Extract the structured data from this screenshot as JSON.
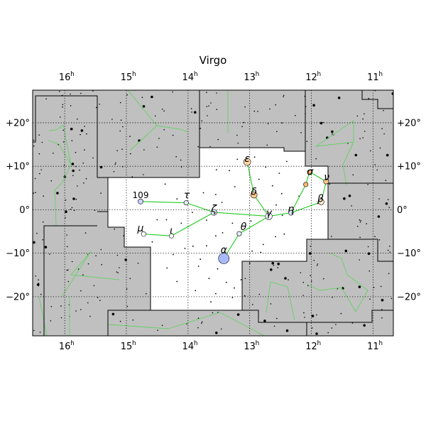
{
  "title": "Virgo",
  "ra_labels": [
    {
      "h": "16",
      "ra": 16
    },
    {
      "h": "15",
      "ra": 15
    },
    {
      "h": "14",
      "ra": 14
    },
    {
      "h": "13",
      "ra": 13
    },
    {
      "h": "12",
      "ra": 12
    },
    {
      "h": "11",
      "ra": 11
    }
  ],
  "dec_labels": [
    {
      "text": "+20°",
      "dec": 20
    },
    {
      "text": "+10°",
      "dec": 10
    },
    {
      "text": "0°",
      "dec": 0
    },
    {
      "text": "−10°",
      "dec": -10
    },
    {
      "text": "−20°",
      "dec": -20
    }
  ],
  "star_labels": [
    {
      "text": "ε",
      "ra": 13.04,
      "dec": 11.0
    },
    {
      "text": "δ",
      "ra": 12.93,
      "dec": 3.4
    },
    {
      "text": "γ",
      "ra": 12.69,
      "dec": -1.5
    },
    {
      "text": "ζ",
      "ra": 13.58,
      "dec": -0.6
    },
    {
      "text": "η",
      "ra": 12.33,
      "dec": -0.6
    },
    {
      "text": "β",
      "ra": 11.85,
      "dec": 1.8
    },
    {
      "text": "σ",
      "ra": 12.02,
      "dec": 8.0
    },
    {
      "text": "ν",
      "ra": 11.75,
      "dec": 6.8
    },
    {
      "text": "τ",
      "ra": 14.02,
      "dec": 2.6
    },
    {
      "text": "109",
      "ra": 14.77,
      "dec": 2.7
    },
    {
      "text": "μ",
      "ra": 14.77,
      "dec": -5.0
    },
    {
      "text": "ι",
      "ra": 14.27,
      "dec": -5.6
    },
    {
      "text": "θ",
      "ra": 13.1,
      "dec": -4.7
    },
    {
      "text": "α",
      "ra": 13.42,
      "dec": -10.0
    }
  ],
  "colors": {
    "outside_fill": "#c0c0c0",
    "inside_fill": "#ffffff",
    "line_bright": "#22cc22",
    "line_faint": "#66d066",
    "boundary": "#000000"
  },
  "chart_data": {
    "type": "scatter",
    "title": "Virgo",
    "xlim_hours": [
      16.52,
      10.67
    ],
    "ylim_degrees": [
      -29.0,
      27.5
    ],
    "grid": true,
    "projection": "equirectangular, right ascension increasing to the left",
    "bright_stars": [
      {
        "ra": 13.42,
        "dec": -11.2,
        "size": 7.5,
        "color": "#a9b9ff"
      },
      {
        "ra": 13.04,
        "dec": 11.0,
        "size": 5.0,
        "color": "#ffd6a8"
      },
      {
        "ra": 12.93,
        "dec": 3.4,
        "size": 4.5,
        "color": "#ffc88f"
      },
      {
        "ra": 12.69,
        "dec": -1.5,
        "size": 4.8,
        "color": "#f2f4ff"
      },
      {
        "ra": 13.58,
        "dec": -0.6,
        "size": 4.2,
        "color": "#e4ecff"
      },
      {
        "ra": 12.33,
        "dec": -0.7,
        "size": 3.5,
        "color": "#d8e4ff"
      },
      {
        "ra": 11.84,
        "dec": 1.8,
        "size": 4.0,
        "color": "#ffe8d0"
      },
      {
        "ra": 12.09,
        "dec": 5.8,
        "size": 3.2,
        "color": "#ffb870"
      },
      {
        "ra": 11.76,
        "dec": 6.5,
        "size": 3.6,
        "color": "#ffc88f"
      },
      {
        "ra": 14.03,
        "dec": 1.6,
        "size": 3.2,
        "color": "#e4ecff"
      },
      {
        "ra": 14.77,
        "dec": 1.9,
        "size": 3.6,
        "color": "#c8d6ff"
      },
      {
        "ra": 14.72,
        "dec": -5.6,
        "size": 3.3,
        "color": "#ffffff"
      },
      {
        "ra": 14.27,
        "dec": -6.0,
        "size": 3.2,
        "color": "#ffffff"
      },
      {
        "ra": 13.17,
        "dec": -5.5,
        "size": 3.2,
        "color": "#e4ecff"
      },
      {
        "ra": 12.03,
        "dec": 8.7,
        "size": 3.0,
        "color": "#ffb870"
      }
    ],
    "faint_stars_inside": [
      {
        "ra": 13.54,
        "dec": 9.2
      },
      {
        "ra": 13.33,
        "dec": 9.0
      },
      {
        "ra": 13.2,
        "dec": 11.6
      },
      {
        "ra": 12.92,
        "dec": 12.1
      },
      {
        "ra": 12.74,
        "dec": 9.8
      },
      {
        "ra": 12.52,
        "dec": 8.4
      },
      {
        "ra": 12.4,
        "dec": 11.1
      },
      {
        "ra": 12.85,
        "dec": 7.0
      },
      {
        "ra": 12.63,
        "dec": 5.5
      },
      {
        "ra": 13.24,
        "dec": 5.3
      },
      {
        "ra": 13.55,
        "dec": 3.5
      },
      {
        "ra": 13.75,
        "dec": 3.9
      },
      {
        "ra": 14.18,
        "dec": 2.5
      },
      {
        "ra": 14.37,
        "dec": 5.9
      },
      {
        "ra": 12.95,
        "dec": 4.8
      },
      {
        "ra": 12.48,
        "dec": 3.7
      },
      {
        "ra": 12.2,
        "dec": 3.1
      },
      {
        "ra": 12.57,
        "dec": 1.1
      },
      {
        "ra": 12.47,
        "dec": -1.3
      },
      {
        "ra": 12.98,
        "dec": -2.6
      },
      {
        "ra": 13.28,
        "dec": -3.1
      },
      {
        "ra": 13.7,
        "dec": -2.4
      },
      {
        "ra": 13.93,
        "dec": -0.6
      },
      {
        "ra": 13.45,
        "dec": 1.7
      },
      {
        "ra": 14.5,
        "dec": -2.3
      },
      {
        "ra": 14.58,
        "dec": -7.4
      },
      {
        "ra": 14.35,
        "dec": -2.3
      },
      {
        "ra": 14.11,
        "dec": -3.1
      },
      {
        "ra": 13.92,
        "dec": -8.4
      },
      {
        "ra": 13.7,
        "dec": -8.3
      },
      {
        "ra": 13.55,
        "dec": -6.0
      },
      {
        "ra": 13.44,
        "dec": -5.3
      },
      {
        "ra": 12.96,
        "dec": -9.5
      },
      {
        "ra": 12.78,
        "dec": -8.0
      },
      {
        "ra": 12.58,
        "dec": -6.2
      },
      {
        "ra": 12.44,
        "dec": -5.6
      },
      {
        "ra": 14.24,
        "dec": -10.3
      },
      {
        "ra": 14.34,
        "dec": -13.4
      },
      {
        "ra": 14.18,
        "dec": -16.5
      },
      {
        "ra": 13.83,
        "dec": -13.0
      },
      {
        "ra": 13.66,
        "dec": -15.8
      },
      {
        "ra": 13.52,
        "dec": -13.6
      },
      {
        "ra": 13.38,
        "dec": -16.7
      },
      {
        "ra": 13.25,
        "dec": -18.0
      },
      {
        "ra": 13.14,
        "dec": -16.1
      },
      {
        "ra": 13.08,
        "dec": -19.8
      },
      {
        "ra": 13.88,
        "dec": -18.6
      },
      {
        "ra": 13.55,
        "dec": -19.3
      },
      {
        "ra": 13.28,
        "dec": -20.2
      },
      {
        "ra": 13.63,
        "dec": -21.2
      },
      {
        "ra": 12.82,
        "dec": -9.8
      },
      {
        "ra": 13.0,
        "dec": -12.3
      },
      {
        "ra": 13.8,
        "dec": -11.4
      },
      {
        "ra": 14.05,
        "dec": -8.9
      }
    ],
    "lines_inside": [
      [
        [
          13.04,
          11.0
        ],
        [
          12.93,
          3.4
        ]
      ],
      [
        [
          12.93,
          3.4
        ],
        [
          12.69,
          -1.5
        ]
      ],
      [
        [
          12.69,
          -1.5
        ],
        [
          13.58,
          -0.6
        ]
      ],
      [
        [
          13.58,
          -0.6
        ],
        [
          14.03,
          1.6
        ]
      ],
      [
        [
          14.03,
          1.6
        ],
        [
          14.77,
          1.9
        ]
      ],
      [
        [
          13.58,
          -0.6
        ],
        [
          14.27,
          -6.0
        ]
      ],
      [
        [
          14.27,
          -6.0
        ],
        [
          14.72,
          -5.6
        ]
      ],
      [
        [
          12.69,
          -1.5
        ],
        [
          13.17,
          -5.5
        ]
      ],
      [
        [
          13.17,
          -5.5
        ],
        [
          13.42,
          -11.2
        ]
      ],
      [
        [
          12.69,
          -1.5
        ],
        [
          12.33,
          -0.7
        ]
      ],
      [
        [
          12.33,
          -0.7
        ],
        [
          11.84,
          1.8
        ]
      ],
      [
        [
          12.33,
          -0.7
        ],
        [
          12.09,
          5.8
        ]
      ],
      [
        [
          12.09,
          5.8
        ],
        [
          12.03,
          8.7
        ]
      ],
      [
        [
          12.03,
          8.7
        ],
        [
          11.76,
          6.5
        ]
      ],
      [
        [
          11.76,
          6.5
        ],
        [
          11.84,
          1.8
        ]
      ]
    ]
  }
}
